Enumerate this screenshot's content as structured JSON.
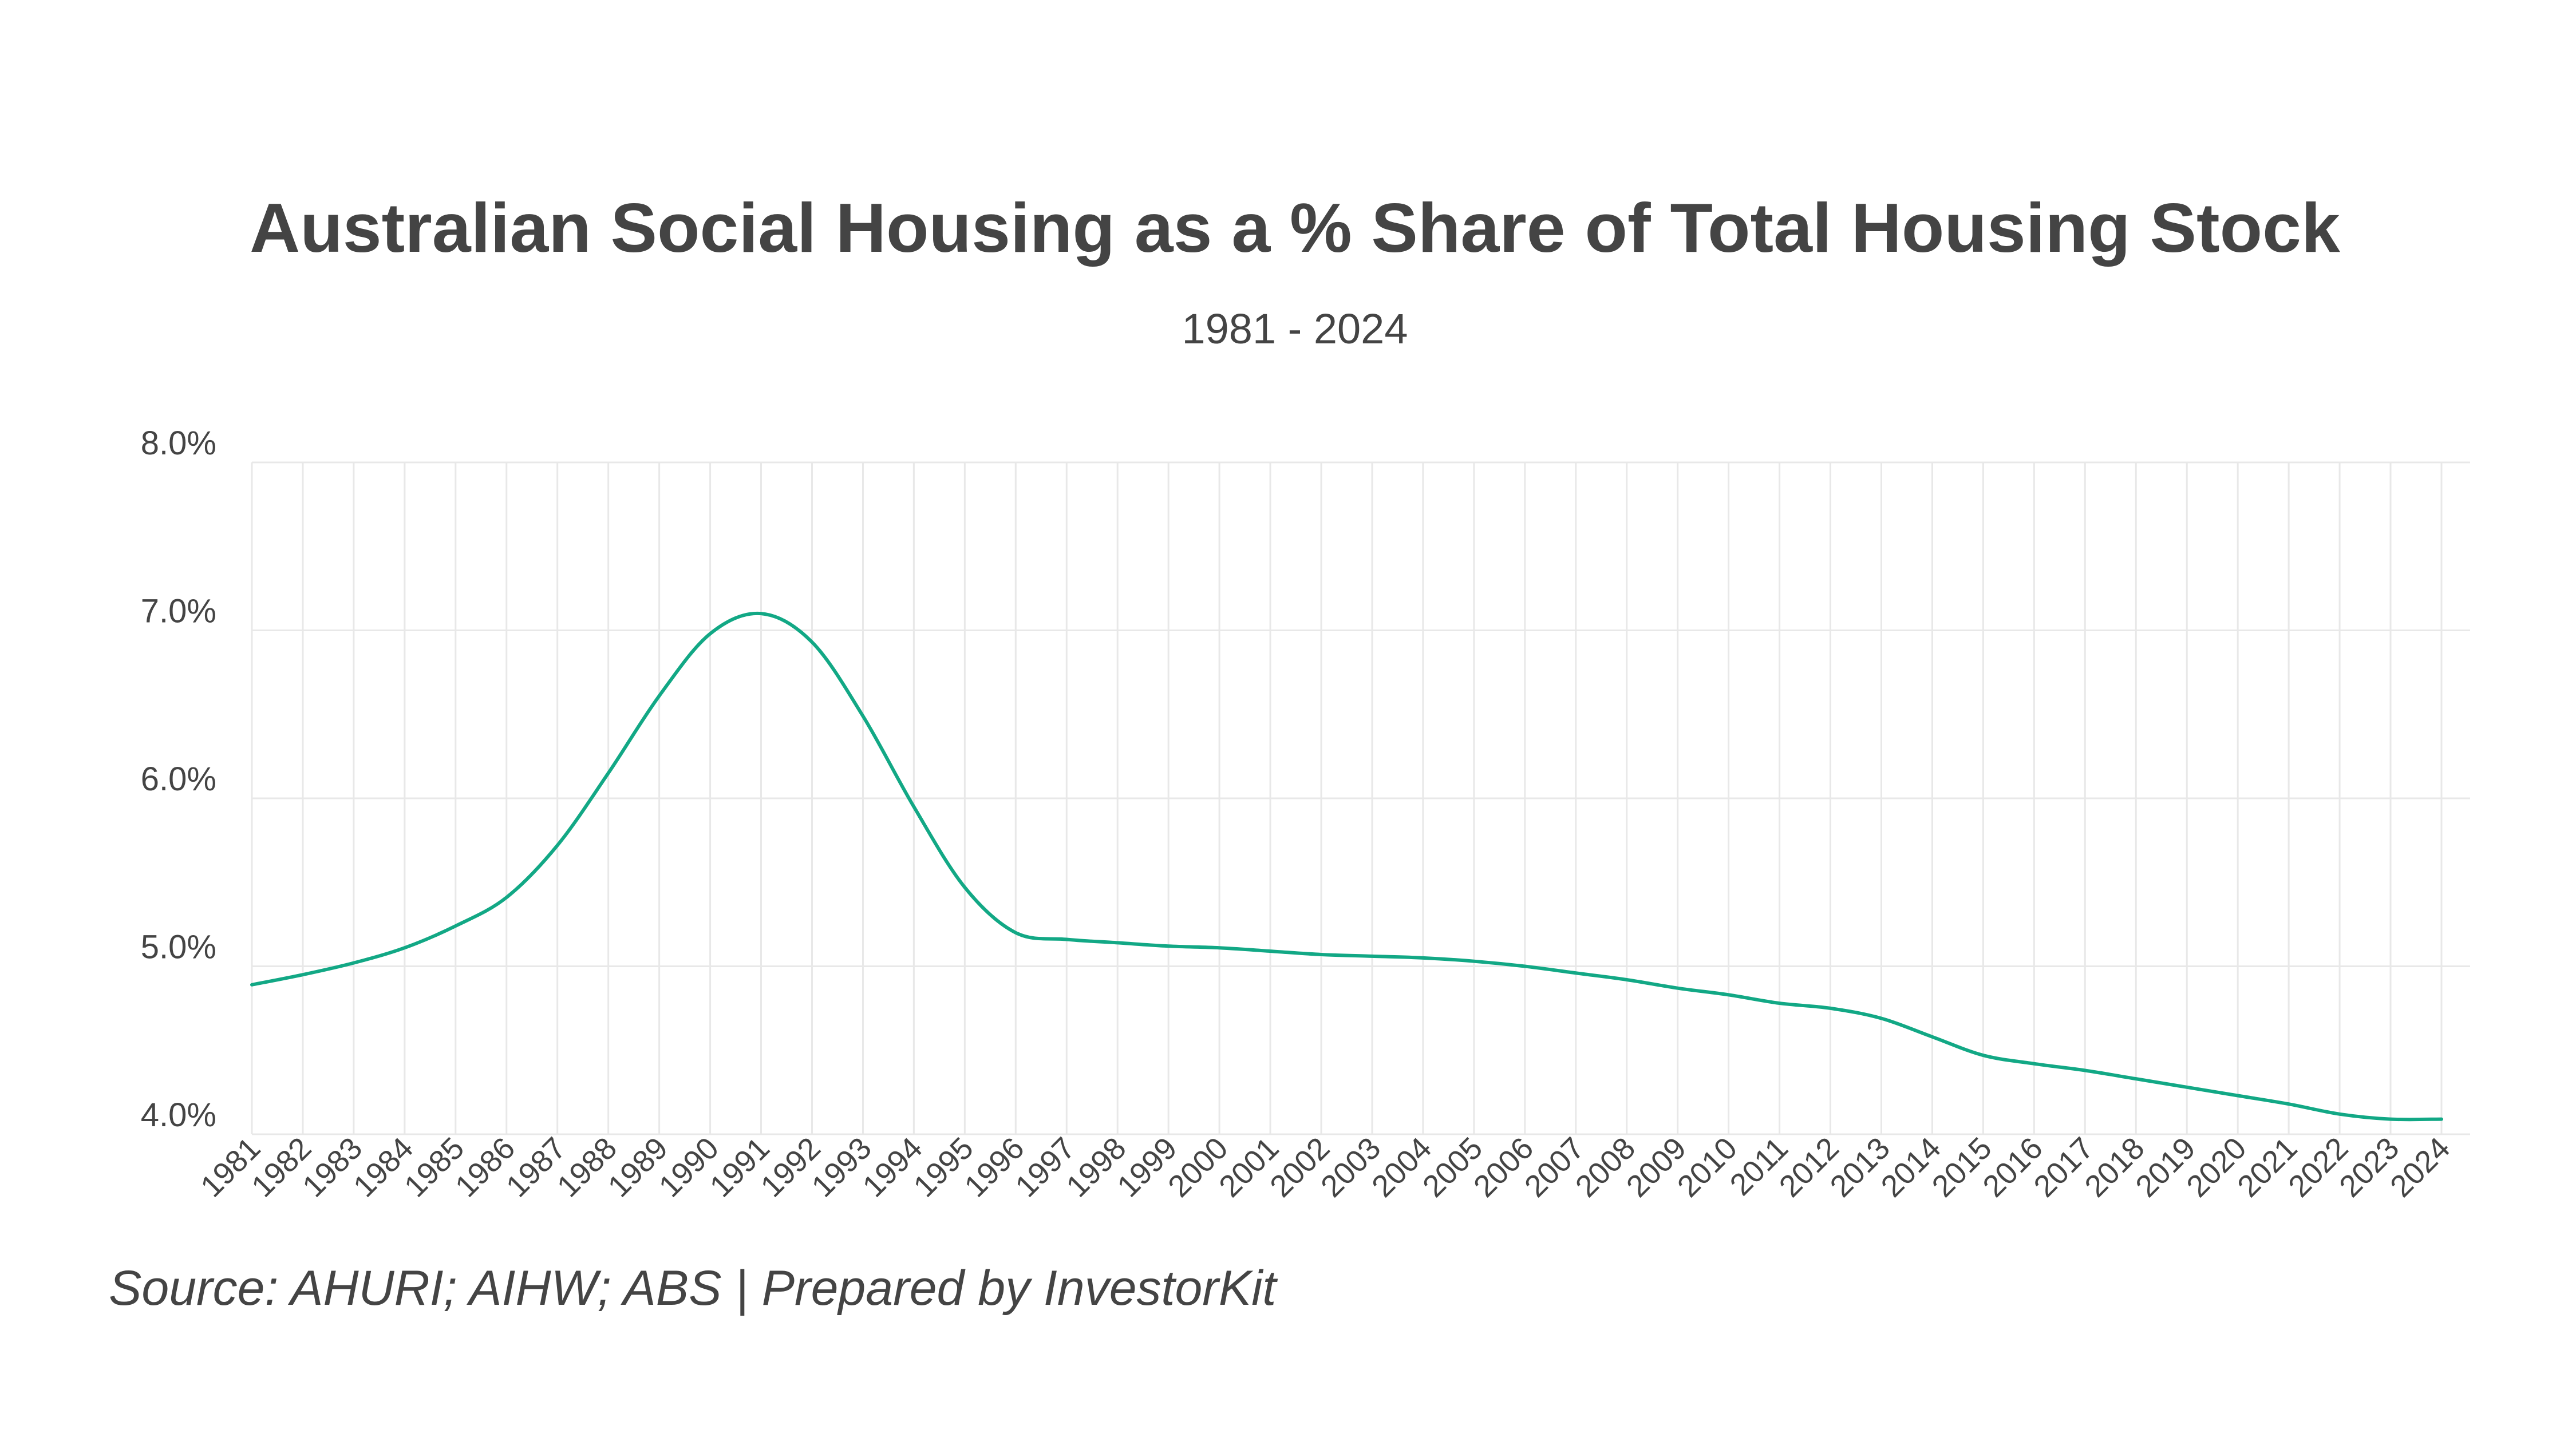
{
  "colors": {
    "line": "#12a885",
    "text": "#444444",
    "grid": "#e8e8e8",
    "background": "#ffffff"
  },
  "chart_data": {
    "type": "line",
    "title": "Australian Social Housing as a % Share of Total Housing Stock",
    "subtitle": "1981 - 2024",
    "source": "Source: AHURI; AIHW; ABS | Prepared by InvestorKit",
    "xlabel": "",
    "ylabel": "",
    "ylim": [
      4.0,
      8.0
    ],
    "y_ticks": [
      4.0,
      5.0,
      6.0,
      7.0,
      8.0
    ],
    "y_tick_labels": [
      "4.0%",
      "5.0%",
      "6.0%",
      "7.0%",
      "8.0%"
    ],
    "grid": true,
    "legend": "none",
    "categories": [
      "1981",
      "1982",
      "1983",
      "1984",
      "1985",
      "1986",
      "1987",
      "1988",
      "1989",
      "1990",
      "1991",
      "1992",
      "1993",
      "1994",
      "1995",
      "1996",
      "1997",
      "1998",
      "1999",
      "2000",
      "2001",
      "2002",
      "2003",
      "2004",
      "2005",
      "2006",
      "2007",
      "2008",
      "2009",
      "2010",
      "2011",
      "2012",
      "2013",
      "2014",
      "2015",
      "2016",
      "2017",
      "2018",
      "2019",
      "2020",
      "2021",
      "2022",
      "2023",
      "2024"
    ],
    "series": [
      {
        "values": [
          4.89,
          4.95,
          5.02,
          5.11,
          5.24,
          5.41,
          5.72,
          6.15,
          6.61,
          6.98,
          7.1,
          6.93,
          6.49,
          5.95,
          5.47,
          5.2,
          5.16,
          5.14,
          5.12,
          5.11,
          5.09,
          5.07,
          5.06,
          5.05,
          5.03,
          5.0,
          4.96,
          4.92,
          4.87,
          4.83,
          4.78,
          4.75,
          4.69,
          4.58,
          4.47,
          4.42,
          4.38,
          4.33,
          4.28,
          4.23,
          4.18,
          4.12,
          4.09,
          4.09
        ]
      }
    ]
  }
}
